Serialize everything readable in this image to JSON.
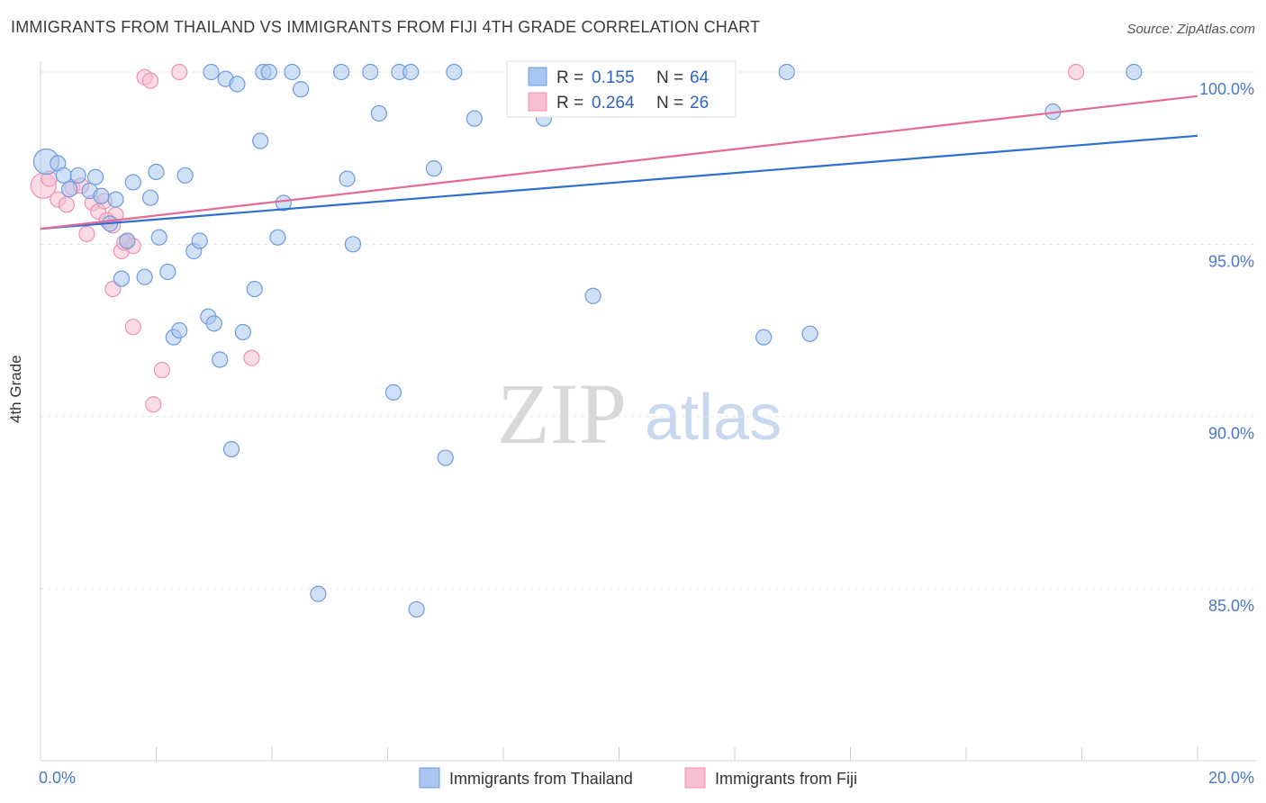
{
  "header": {
    "title": "IMMIGRANTS FROM THAILAND VS IMMIGRANTS FROM FIJI 4TH GRADE CORRELATION CHART",
    "source": "Source: ZipAtlas.com"
  },
  "watermark": {
    "zip": "ZIP",
    "atlas": "atlas"
  },
  "colors": {
    "thailand_fill": "#a9c6f0",
    "thailand_stroke": "#6f9bdc",
    "thailand_line": "#2f6fd0",
    "fiji_fill": "#f7bdd0",
    "fiji_stroke": "#ec93b1",
    "fiji_line": "#e46b98",
    "tick_text": "#4a78c8"
  },
  "stats": {
    "thailand": {
      "r_label": "R =",
      "r_value": "0.155",
      "n_label": "N =",
      "n_value": "64"
    },
    "fiji": {
      "r_label": "R =",
      "r_value": "0.264",
      "n_label": "N =",
      "n_value": "26"
    }
  },
  "legend": {
    "thailand": "Immigrants from Thailand",
    "fiji": "Immigrants from Fiji"
  },
  "chart_data": {
    "type": "scatter",
    "title": "IMMIGRANTS FROM THAILAND VS IMMIGRANTS FROM FIJI 4TH GRADE CORRELATION CHART",
    "xlabel": "",
    "ylabel": "4th Grade",
    "xlim": [
      0,
      20
    ],
    "ylim": [
      80.5,
      100.8
    ],
    "x_tick_labels": [
      "0.0%",
      "20.0%"
    ],
    "y_ticks": [
      85,
      90,
      95,
      100
    ],
    "y_tick_labels": [
      "85.0%",
      "90.0%",
      "95.0%",
      "100.0%"
    ],
    "grid": true,
    "legend_position": "bottom",
    "series": [
      {
        "name": "Immigrants from Thailand",
        "r": 0.155,
        "n": 64,
        "trend": {
          "x": [
            0,
            20
          ],
          "y": [
            95.45,
            98.15
          ]
        },
        "points": [
          {
            "x": 0.1,
            "y": 97.4,
            "big": true
          },
          {
            "x": 0.3,
            "y": 97.35
          },
          {
            "x": 0.4,
            "y": 97.0
          },
          {
            "x": 0.5,
            "y": 96.6
          },
          {
            "x": 0.65,
            "y": 97.0
          },
          {
            "x": 0.85,
            "y": 96.55
          },
          {
            "x": 0.95,
            "y": 96.95
          },
          {
            "x": 1.05,
            "y": 96.4
          },
          {
            "x": 1.3,
            "y": 96.3
          },
          {
            "x": 1.2,
            "y": 95.6
          },
          {
            "x": 1.5,
            "y": 95.1
          },
          {
            "x": 1.6,
            "y": 96.8
          },
          {
            "x": 1.9,
            "y": 96.35
          },
          {
            "x": 2.0,
            "y": 97.1
          },
          {
            "x": 2.05,
            "y": 95.2
          },
          {
            "x": 1.4,
            "y": 94.0
          },
          {
            "x": 1.8,
            "y": 94.05
          },
          {
            "x": 2.2,
            "y": 94.2
          },
          {
            "x": 2.5,
            "y": 97.0
          },
          {
            "x": 2.65,
            "y": 94.8
          },
          {
            "x": 2.75,
            "y": 95.1
          },
          {
            "x": 2.3,
            "y": 92.3
          },
          {
            "x": 2.4,
            "y": 92.5
          },
          {
            "x": 2.9,
            "y": 92.9
          },
          {
            "x": 3.0,
            "y": 92.7
          },
          {
            "x": 3.1,
            "y": 91.65
          },
          {
            "x": 3.3,
            "y": 89.05
          },
          {
            "x": 3.5,
            "y": 92.45
          },
          {
            "x": 3.7,
            "y": 93.7
          },
          {
            "x": 3.8,
            "y": 98.0
          },
          {
            "x": 4.1,
            "y": 95.2
          },
          {
            "x": 4.2,
            "y": 96.2
          },
          {
            "x": 3.2,
            "y": 99.8
          },
          {
            "x": 3.4,
            "y": 99.65
          },
          {
            "x": 3.85,
            "y": 100.0
          },
          {
            "x": 3.95,
            "y": 100.0
          },
          {
            "x": 4.35,
            "y": 100.0
          },
          {
            "x": 4.5,
            "y": 99.5
          },
          {
            "x": 4.8,
            "y": 84.85
          },
          {
            "x": 5.2,
            "y": 100.0
          },
          {
            "x": 5.3,
            "y": 96.9
          },
          {
            "x": 5.4,
            "y": 95.0
          },
          {
            "x": 5.7,
            "y": 100.0
          },
          {
            "x": 5.85,
            "y": 98.8
          },
          {
            "x": 6.1,
            "y": 90.7
          },
          {
            "x": 6.2,
            "y": 100.0
          },
          {
            "x": 6.4,
            "y": 100.0
          },
          {
            "x": 6.5,
            "y": 84.4
          },
          {
            "x": 6.8,
            "y": 97.2
          },
          {
            "x": 7.0,
            "y": 88.8
          },
          {
            "x": 7.15,
            "y": 100.0
          },
          {
            "x": 7.5,
            "y": 98.65
          },
          {
            "x": 8.7,
            "y": 98.65
          },
          {
            "x": 9.4,
            "y": 100.0
          },
          {
            "x": 9.55,
            "y": 93.5
          },
          {
            "x": 10.2,
            "y": 100.0
          },
          {
            "x": 11.1,
            "y": 100.0
          },
          {
            "x": 12.5,
            "y": 92.3
          },
          {
            "x": 12.9,
            "y": 100.0
          },
          {
            "x": 13.3,
            "y": 92.4
          },
          {
            "x": 17.5,
            "y": 98.85
          },
          {
            "x": 18.9,
            "y": 100.0
          },
          {
            "x": 2.95,
            "y": 100.0
          },
          {
            "x": 8.9,
            "y": 100.0
          }
        ]
      },
      {
        "name": "Immigrants from Fiji",
        "r": 0.264,
        "n": 26,
        "trend": {
          "x": [
            0,
            20
          ],
          "y": [
            95.45,
            99.3
          ]
        },
        "points": [
          {
            "x": 0.05,
            "y": 96.7,
            "big": true
          },
          {
            "x": 0.15,
            "y": 96.9
          },
          {
            "x": 0.3,
            "y": 96.3
          },
          {
            "x": 0.45,
            "y": 96.15
          },
          {
            "x": 0.55,
            "y": 96.65
          },
          {
            "x": 0.7,
            "y": 96.7
          },
          {
            "x": 0.8,
            "y": 95.3
          },
          {
            "x": 0.9,
            "y": 96.2
          },
          {
            "x": 1.0,
            "y": 95.95
          },
          {
            "x": 1.1,
            "y": 96.25
          },
          {
            "x": 1.15,
            "y": 95.7
          },
          {
            "x": 1.25,
            "y": 95.55
          },
          {
            "x": 1.3,
            "y": 95.85
          },
          {
            "x": 1.4,
            "y": 94.8
          },
          {
            "x": 1.5,
            "y": 95.1
          },
          {
            "x": 1.6,
            "y": 94.95
          },
          {
            "x": 1.25,
            "y": 93.7
          },
          {
            "x": 1.6,
            "y": 92.6
          },
          {
            "x": 2.1,
            "y": 91.35
          },
          {
            "x": 1.95,
            "y": 90.35
          },
          {
            "x": 3.65,
            "y": 91.7
          },
          {
            "x": 1.8,
            "y": 99.85
          },
          {
            "x": 1.9,
            "y": 99.75
          },
          {
            "x": 2.4,
            "y": 100.0
          },
          {
            "x": 17.9,
            "y": 100.0
          },
          {
            "x": 1.45,
            "y": 95.05
          }
        ]
      }
    ]
  }
}
